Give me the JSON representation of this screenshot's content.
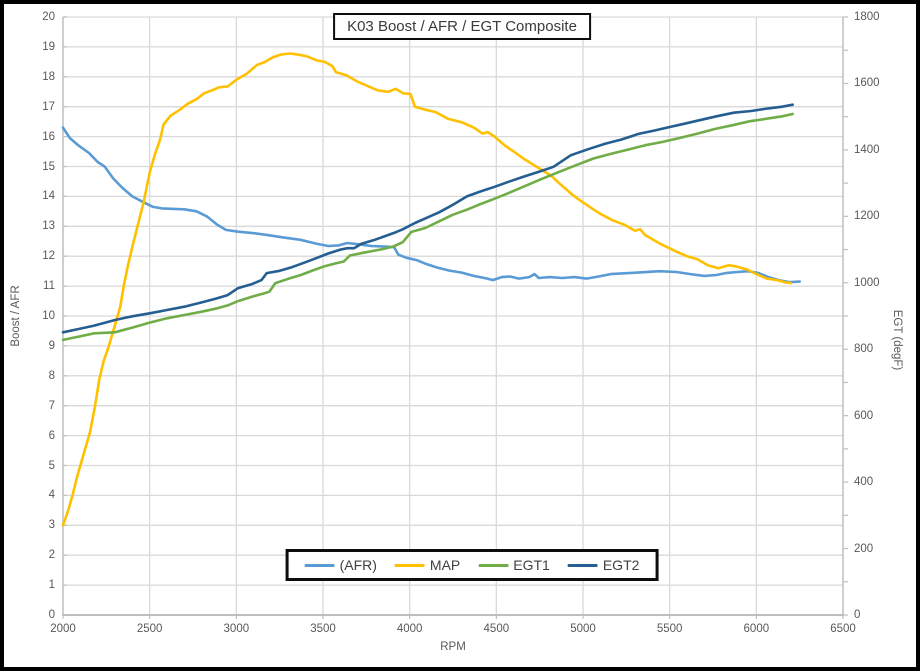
{
  "chart_data": {
    "type": "line",
    "title": "K03 Boost / AFR / EGT Composite",
    "grid": true,
    "legend": {
      "position": "bottom",
      "entries": [
        "(AFR)",
        "MAP",
        "EGT1",
        "EGT2"
      ]
    },
    "x_axis": {
      "label": "RPM",
      "min": 2000,
      "max": 6500,
      "tick_labels": [
        "2000",
        "2500",
        "3000",
        "3500",
        "4000",
        "4500",
        "5000",
        "5500",
        "6000",
        "6500"
      ]
    },
    "y_axis_left": {
      "label": "Boost / AFR",
      "min": 0,
      "max": 20,
      "tick_labels": [
        "0",
        "1",
        "2",
        "3",
        "4",
        "5",
        "6",
        "7",
        "8",
        "9",
        "10",
        "11",
        "12",
        "13",
        "14",
        "15",
        "16",
        "17",
        "18",
        "19",
        "20"
      ]
    },
    "y_axis_right": {
      "label": "EGT (degF)",
      "min": 0,
      "max": 1800,
      "minor_tick_step": 100,
      "tick_labels": [
        "0",
        "200",
        "400",
        "600",
        "800",
        "1000",
        "1200",
        "1400",
        "1600",
        "1800"
      ]
    },
    "series": [
      {
        "name": "(AFR)",
        "axis": "left",
        "color": "#5B9BD5",
        "points": [
          [
            2000,
            16.3
          ],
          [
            2040,
            15.95
          ],
          [
            2090,
            15.7
          ],
          [
            2150,
            15.45
          ],
          [
            2200,
            15.15
          ],
          [
            2240,
            15.0
          ],
          [
            2290,
            14.6
          ],
          [
            2340,
            14.3
          ],
          [
            2400,
            14.0
          ],
          [
            2460,
            13.82
          ],
          [
            2520,
            13.65
          ],
          [
            2570,
            13.6
          ],
          [
            2700,
            13.57
          ],
          [
            2770,
            13.5
          ],
          [
            2830,
            13.33
          ],
          [
            2890,
            13.05
          ],
          [
            2940,
            12.88
          ],
          [
            3010,
            12.82
          ],
          [
            3100,
            12.77
          ],
          [
            3190,
            12.7
          ],
          [
            3280,
            12.62
          ],
          [
            3370,
            12.55
          ],
          [
            3460,
            12.42
          ],
          [
            3530,
            12.34
          ],
          [
            3590,
            12.36
          ],
          [
            3640,
            12.44
          ],
          [
            3700,
            12.4
          ],
          [
            3780,
            12.34
          ],
          [
            3860,
            12.32
          ],
          [
            3910,
            12.3
          ],
          [
            3935,
            12.05
          ],
          [
            3980,
            11.95
          ],
          [
            4040,
            11.87
          ],
          [
            4100,
            11.73
          ],
          [
            4160,
            11.62
          ],
          [
            4230,
            11.52
          ],
          [
            4300,
            11.45
          ],
          [
            4370,
            11.34
          ],
          [
            4440,
            11.26
          ],
          [
            4480,
            11.2
          ],
          [
            4530,
            11.3
          ],
          [
            4580,
            11.32
          ],
          [
            4630,
            11.25
          ],
          [
            4690,
            11.3
          ],
          [
            4720,
            11.4
          ],
          [
            4745,
            11.27
          ],
          [
            4810,
            11.3
          ],
          [
            4880,
            11.27
          ],
          [
            4950,
            11.3
          ],
          [
            5020,
            11.25
          ],
          [
            5090,
            11.32
          ],
          [
            5160,
            11.4
          ],
          [
            5250,
            11.43
          ],
          [
            5340,
            11.46
          ],
          [
            5440,
            11.5
          ],
          [
            5540,
            11.47
          ],
          [
            5620,
            11.4
          ],
          [
            5700,
            11.34
          ],
          [
            5770,
            11.37
          ],
          [
            5830,
            11.44
          ],
          [
            5890,
            11.47
          ],
          [
            5950,
            11.5
          ],
          [
            6010,
            11.44
          ],
          [
            6070,
            11.3
          ],
          [
            6130,
            11.2
          ],
          [
            6190,
            11.13
          ],
          [
            6250,
            11.15
          ]
        ]
      },
      {
        "name": "MAP",
        "axis": "left",
        "color": "#FFC000",
        "points": [
          [
            2000,
            3.0
          ],
          [
            2030,
            3.5
          ],
          [
            2055,
            4.0
          ],
          [
            2080,
            4.6
          ],
          [
            2100,
            5.0
          ],
          [
            2125,
            5.5
          ],
          [
            2155,
            6.1
          ],
          [
            2185,
            7.0
          ],
          [
            2210,
            7.9
          ],
          [
            2235,
            8.5
          ],
          [
            2265,
            9.0
          ],
          [
            2300,
            9.7
          ],
          [
            2330,
            10.3
          ],
          [
            2350,
            11.0
          ],
          [
            2375,
            11.7
          ],
          [
            2400,
            12.3
          ],
          [
            2430,
            13.0
          ],
          [
            2465,
            13.8
          ],
          [
            2500,
            14.8
          ],
          [
            2530,
            15.4
          ],
          [
            2560,
            15.9
          ],
          [
            2580,
            16.4
          ],
          [
            2620,
            16.7
          ],
          [
            2675,
            16.9
          ],
          [
            2720,
            17.1
          ],
          [
            2770,
            17.25
          ],
          [
            2815,
            17.45
          ],
          [
            2860,
            17.55
          ],
          [
            2900,
            17.65
          ],
          [
            2950,
            17.68
          ],
          [
            3000,
            17.9
          ],
          [
            3060,
            18.1
          ],
          [
            3120,
            18.4
          ],
          [
            3160,
            18.48
          ],
          [
            3210,
            18.65
          ],
          [
            3260,
            18.75
          ],
          [
            3310,
            18.78
          ],
          [
            3360,
            18.74
          ],
          [
            3410,
            18.68
          ],
          [
            3465,
            18.55
          ],
          [
            3510,
            18.5
          ],
          [
            3555,
            18.35
          ],
          [
            3575,
            18.15
          ],
          [
            3635,
            18.05
          ],
          [
            3695,
            17.85
          ],
          [
            3755,
            17.7
          ],
          [
            3815,
            17.55
          ],
          [
            3875,
            17.5
          ],
          [
            3920,
            17.6
          ],
          [
            3960,
            17.45
          ],
          [
            4005,
            17.42
          ],
          [
            4030,
            17.0
          ],
          [
            4090,
            16.9
          ],
          [
            4150,
            16.82
          ],
          [
            4220,
            16.6
          ],
          [
            4300,
            16.48
          ],
          [
            4370,
            16.3
          ],
          [
            4420,
            16.1
          ],
          [
            4450,
            16.15
          ],
          [
            4490,
            16.0
          ],
          [
            4550,
            15.7
          ],
          [
            4600,
            15.5
          ],
          [
            4660,
            15.25
          ],
          [
            4730,
            15.0
          ],
          [
            4815,
            14.7
          ],
          [
            4870,
            14.4
          ],
          [
            4940,
            14.05
          ],
          [
            5000,
            13.8
          ],
          [
            5090,
            13.45
          ],
          [
            5170,
            13.2
          ],
          [
            5240,
            13.05
          ],
          [
            5300,
            12.85
          ],
          [
            5330,
            12.9
          ],
          [
            5360,
            12.7
          ],
          [
            5450,
            12.4
          ],
          [
            5540,
            12.15
          ],
          [
            5600,
            12.0
          ],
          [
            5660,
            11.9
          ],
          [
            5720,
            11.7
          ],
          [
            5780,
            11.6
          ],
          [
            5840,
            11.7
          ],
          [
            5890,
            11.65
          ],
          [
            5950,
            11.55
          ],
          [
            6000,
            11.4
          ],
          [
            6060,
            11.25
          ],
          [
            6120,
            11.2
          ],
          [
            6170,
            11.12
          ],
          [
            6200,
            11.1
          ]
        ]
      },
      {
        "name": "EGT1",
        "axis": "right",
        "color": "#70AD47",
        "points": [
          [
            2000,
            828
          ],
          [
            2090,
            838
          ],
          [
            2180,
            848
          ],
          [
            2300,
            851
          ],
          [
            2400,
            865
          ],
          [
            2500,
            880
          ],
          [
            2600,
            893
          ],
          [
            2700,
            903
          ],
          [
            2800,
            913
          ],
          [
            2880,
            922
          ],
          [
            2950,
            932
          ],
          [
            3010,
            945
          ],
          [
            3090,
            958
          ],
          [
            3160,
            968
          ],
          [
            3190,
            973
          ],
          [
            3225,
            999
          ],
          [
            3300,
            1012
          ],
          [
            3370,
            1023
          ],
          [
            3440,
            1037
          ],
          [
            3510,
            1050
          ],
          [
            3570,
            1058
          ],
          [
            3620,
            1064
          ],
          [
            3655,
            1082
          ],
          [
            3720,
            1089
          ],
          [
            3790,
            1096
          ],
          [
            3850,
            1102
          ],
          [
            3910,
            1110
          ],
          [
            3960,
            1122
          ],
          [
            4010,
            1153
          ],
          [
            4090,
            1165
          ],
          [
            4170,
            1185
          ],
          [
            4250,
            1205
          ],
          [
            4330,
            1220
          ],
          [
            4410,
            1237
          ],
          [
            4490,
            1253
          ],
          [
            4570,
            1270
          ],
          [
            4660,
            1290
          ],
          [
            4760,
            1312
          ],
          [
            4860,
            1333
          ],
          [
            4960,
            1354
          ],
          [
            5060,
            1374
          ],
          [
            5160,
            1388
          ],
          [
            5260,
            1401
          ],
          [
            5360,
            1414
          ],
          [
            5460,
            1424
          ],
          [
            5560,
            1436
          ],
          [
            5660,
            1449
          ],
          [
            5760,
            1463
          ],
          [
            5860,
            1474
          ],
          [
            5960,
            1486
          ],
          [
            6060,
            1494
          ],
          [
            6150,
            1501
          ],
          [
            6210,
            1508
          ]
        ]
      },
      {
        "name": "EGT2",
        "axis": "right",
        "color": "#255E91",
        "points": [
          [
            2000,
            851
          ],
          [
            2090,
            861
          ],
          [
            2180,
            871
          ],
          [
            2300,
            888
          ],
          [
            2400,
            899
          ],
          [
            2500,
            908
          ],
          [
            2600,
            918
          ],
          [
            2700,
            928
          ],
          [
            2800,
            941
          ],
          [
            2880,
            952
          ],
          [
            2950,
            963
          ],
          [
            3010,
            984
          ],
          [
            3090,
            996
          ],
          [
            3145,
            1008
          ],
          [
            3175,
            1029
          ],
          [
            3250,
            1036
          ],
          [
            3320,
            1047
          ],
          [
            3390,
            1060
          ],
          [
            3460,
            1074
          ],
          [
            3530,
            1088
          ],
          [
            3600,
            1100
          ],
          [
            3640,
            1104
          ],
          [
            3680,
            1104
          ],
          [
            3720,
            1117
          ],
          [
            3790,
            1128
          ],
          [
            3850,
            1139
          ],
          [
            3910,
            1150
          ],
          [
            3960,
            1161
          ],
          [
            4030,
            1180
          ],
          [
            4100,
            1196
          ],
          [
            4170,
            1212
          ],
          [
            4240,
            1232
          ],
          [
            4330,
            1260
          ],
          [
            4410,
            1275
          ],
          [
            4490,
            1289
          ],
          [
            4570,
            1304
          ],
          [
            4660,
            1320
          ],
          [
            4750,
            1335
          ],
          [
            4830,
            1349
          ],
          [
            4930,
            1384
          ],
          [
            5030,
            1402
          ],
          [
            5130,
            1419
          ],
          [
            5220,
            1431
          ],
          [
            5320,
            1448
          ],
          [
            5410,
            1458
          ],
          [
            5510,
            1470
          ],
          [
            5570,
            1477
          ],
          [
            5670,
            1489
          ],
          [
            5770,
            1501
          ],
          [
            5870,
            1512
          ],
          [
            5970,
            1517
          ],
          [
            6070,
            1525
          ],
          [
            6150,
            1530
          ],
          [
            6210,
            1536
          ]
        ]
      }
    ],
    "style": {
      "grid_color": "#D9D9D9",
      "axis_color": "#BFBFBF",
      "axis_text_color": "#595959",
      "title_text_color": "#3B3B3B"
    }
  }
}
